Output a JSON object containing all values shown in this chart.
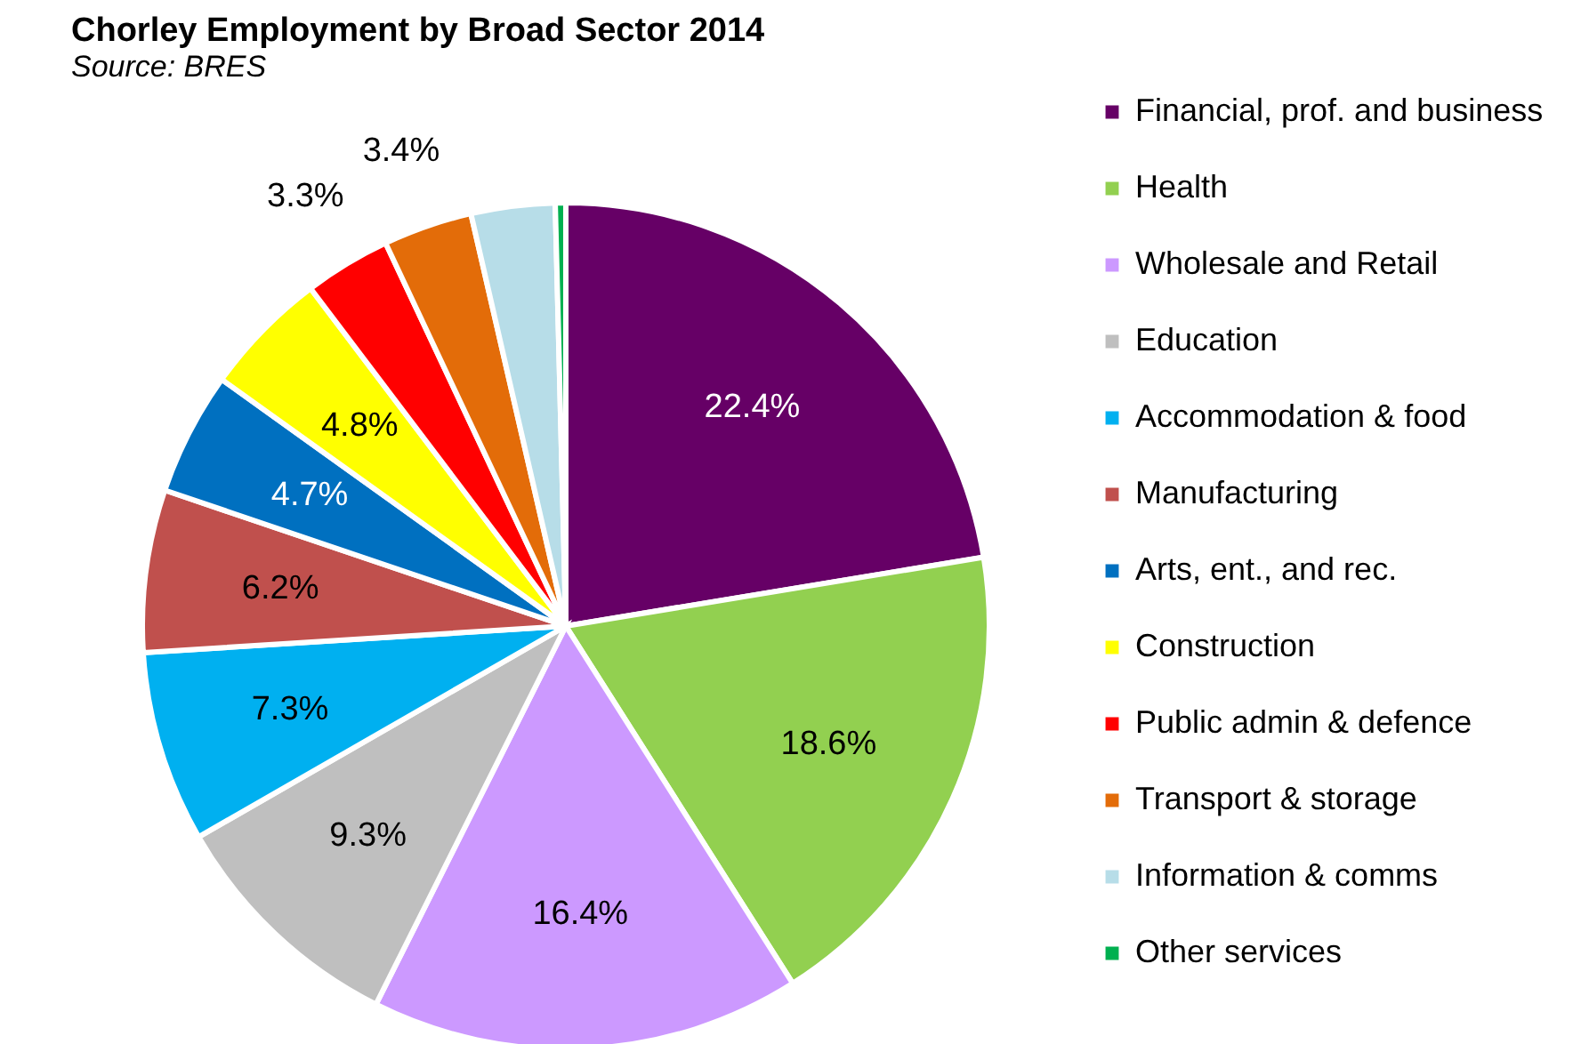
{
  "chart_data": {
    "type": "pie",
    "title": "Chorley Employment by Broad Sector 2014",
    "annotations": [
      "Source: BRES"
    ],
    "categories": [
      "Financial, prof. and business",
      "Health",
      "Wholesale and Retail",
      "Education",
      "Accommodation & food",
      "Manufacturing",
      "Arts, ent.,  and rec.",
      "Construction",
      "Public admin & defence",
      "Transport & storage",
      "Information & comms",
      "Other services"
    ],
    "values": [
      22.4,
      18.6,
      16.4,
      9.3,
      7.3,
      6.2,
      4.7,
      4.8,
      3.3,
      3.4,
      3.2,
      0.4
    ],
    "value_labels": [
      "22.4%",
      "18.6%",
      "16.4%",
      "9.3%",
      "7.3%",
      "6.2%",
      "4.7%",
      "4.8%",
      "3.3%",
      "3.4%",
      null,
      null
    ],
    "colors": [
      "#660066",
      "#92d050",
      "#cc99ff",
      "#bfbfbf",
      "#00b0f0",
      "#c0504d",
      "#0070c0",
      "#ffff00",
      "#ff0000",
      "#e36c09",
      "#b7dde8",
      "#00b050"
    ],
    "legend": "right"
  }
}
